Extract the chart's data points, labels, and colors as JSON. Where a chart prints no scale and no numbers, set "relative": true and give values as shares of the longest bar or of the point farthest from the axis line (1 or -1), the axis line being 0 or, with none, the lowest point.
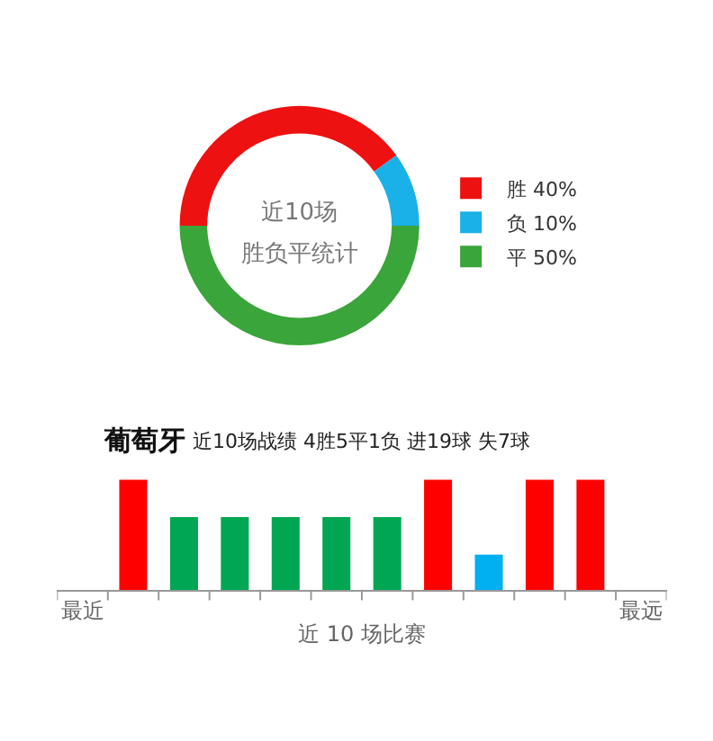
{
  "chart_data": [
    {
      "type": "donut",
      "title": "近10场",
      "subtitle": "胜负平统计",
      "categories": [
        "胜",
        "负",
        "平"
      ],
      "values": [
        40,
        10,
        50
      ],
      "value_labels": [
        "40%",
        "10%",
        "50%"
      ],
      "colors": [
        "#ee1111",
        "#1ab0e8",
        "#3aa53a"
      ],
      "legend": "right"
    },
    {
      "type": "bar",
      "title": "葡萄牙",
      "subtitle": "近10场战绩 4胜5平1负 进19球 失7球",
      "xlabel": "近 10 场比赛",
      "relative": true,
      "categories": [
        "最近",
        null,
        null,
        null,
        null,
        null,
        null,
        null,
        null,
        null,
        null,
        "最远"
      ],
      "values": [
        null,
        1,
        0.66,
        0.66,
        0.66,
        0.66,
        0.66,
        1,
        0.32,
        1,
        1,
        null
      ],
      "colors": [
        "#ff0000",
        "#ff0000",
        "#00a651",
        "#00a651",
        "#00a651",
        "#00a651",
        "#00a651",
        "#ff0000",
        "#00b0f0",
        "#ff0000",
        "#ff0000",
        "#ff0000"
      ]
    }
  ]
}
